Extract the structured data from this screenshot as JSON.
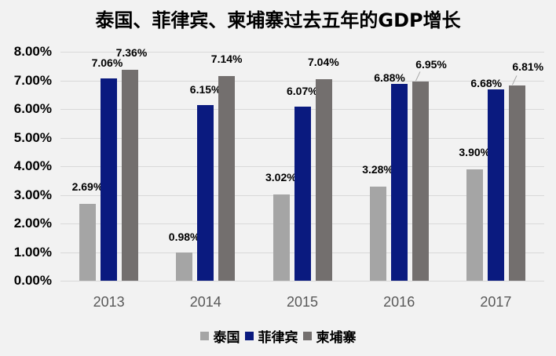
{
  "title": "泰国、菲律宾、柬埔寨过去五年的GDP增长",
  "chart_data": {
    "type": "bar",
    "title": "泰国、菲律宾、柬埔寨过去五年的GDP增长",
    "xlabel": "",
    "ylabel": "",
    "categories": [
      "2013",
      "2014",
      "2015",
      "2016",
      "2017"
    ],
    "series": [
      {
        "name": "泰国",
        "color": "#a5a5a5",
        "values": [
          2.69,
          0.98,
          3.02,
          3.28,
          3.9
        ],
        "labels": [
          "2.69%",
          "0.98%",
          "3.02%",
          "3.28%",
          "3.90%"
        ]
      },
      {
        "name": "菲律宾",
        "color": "#0a1a7f",
        "values": [
          7.06,
          6.15,
          6.07,
          6.88,
          6.68
        ],
        "labels": [
          "7.06%",
          "6.15%",
          "6.07%",
          "6.88%",
          "6.68%"
        ]
      },
      {
        "name": "柬埔寨",
        "color": "#736f6e",
        "values": [
          7.36,
          7.14,
          7.04,
          6.95,
          6.81
        ],
        "labels": [
          "7.36%",
          "7.14%",
          "7.04%",
          "6.95%",
          "6.81%"
        ]
      }
    ],
    "ylim": [
      0,
      8
    ],
    "yticks": [
      "0.00%",
      "1.00%",
      "2.00%",
      "3.00%",
      "4.00%",
      "5.00%",
      "6.00%",
      "7.00%",
      "8.00%"
    ],
    "grid": true,
    "legend_position": "bottom"
  },
  "legend": [
    {
      "label": "泰国",
      "color": "#a5a5a5"
    },
    {
      "label": "菲律宾",
      "color": "#0a1a7f"
    },
    {
      "label": "柬埔寨",
      "color": "#736f6e"
    }
  ]
}
